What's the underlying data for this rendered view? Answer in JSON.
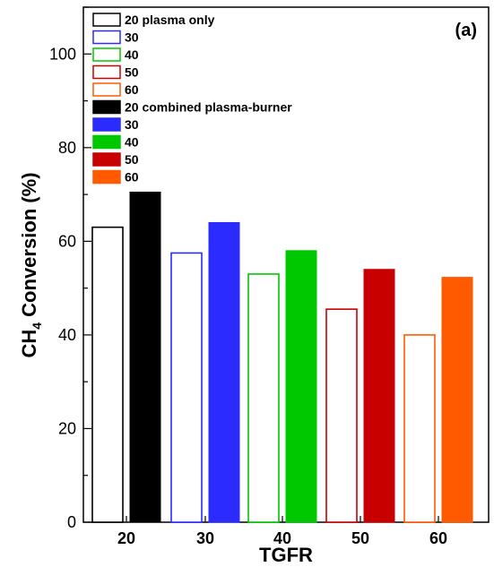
{
  "colors": {
    "20": "#000000",
    "30": "#2b2bff",
    "40": "#00c800",
    "50": "#c80000",
    "60": "#ff5a00"
  },
  "chart_data": {
    "type": "bar",
    "panel_label": "(a)",
    "xlabel": "TGFR",
    "ylabel": "CH",
    "ylabel_subscript": "4",
    "ylabel_rest": " Conversion (%)",
    "ylim": [
      0,
      110
    ],
    "y_ticks": [
      "0",
      "20",
      "40",
      "60",
      "80",
      "100"
    ],
    "categories": [
      "20",
      "30",
      "40",
      "50",
      "60"
    ],
    "grid": false,
    "legend_position": "top-left",
    "series": [
      {
        "name": "plasma only",
        "style": "outline",
        "values": [
          63,
          57.5,
          53,
          45.5,
          40
        ]
      },
      {
        "name": "combined plasma-burner",
        "style": "filled",
        "values": [
          70.5,
          64,
          58,
          54,
          52.3
        ]
      }
    ],
    "legend": [
      {
        "text": "20 plasma only",
        "color_key": "20",
        "style": "outline"
      },
      {
        "text": "30",
        "color_key": "30",
        "style": "outline"
      },
      {
        "text": "40",
        "color_key": "40",
        "style": "outline"
      },
      {
        "text": "50",
        "color_key": "50",
        "style": "outline"
      },
      {
        "text": "60",
        "color_key": "60",
        "style": "outline"
      },
      {
        "text": "20 combined plasma-burner",
        "color_key": "20",
        "style": "filled"
      },
      {
        "text": "30",
        "color_key": "30",
        "style": "filled"
      },
      {
        "text": "40",
        "color_key": "40",
        "style": "filled"
      },
      {
        "text": "50",
        "color_key": "50",
        "style": "filled"
      },
      {
        "text": "60",
        "color_key": "60",
        "style": "filled"
      }
    ]
  }
}
